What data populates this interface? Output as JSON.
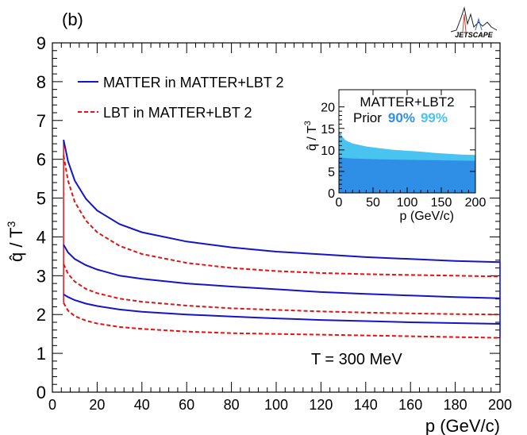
{
  "panel_label": "(b)",
  "logo_text": "JETSCAPE",
  "annotation": "T = 300 MeV",
  "colors": {
    "matter": "#1414c8",
    "lbt": "#e01414",
    "band90": "#2f8fe6",
    "band99": "#49c3ef"
  },
  "chart_data": [
    {
      "type": "line",
      "xlabel": "p (GeV/c)",
      "ylabel_main": "q̂ / T",
      "ylabel_sup": "3",
      "xlim": [
        0,
        200
      ],
      "ylim": [
        0,
        9
      ],
      "xticks": [
        0,
        20,
        40,
        60,
        80,
        100,
        120,
        140,
        160,
        180,
        200
      ],
      "yticks": [
        0,
        1,
        2,
        3,
        4,
        5,
        6,
        7,
        8,
        9
      ],
      "legend": [
        {
          "label": "MATTER in MATTER+LBT 2",
          "style": "solid",
          "color": "#1414c8"
        },
        {
          "label": "LBT in MATTER+LBT 2",
          "style": "dashed",
          "color": "#e01414"
        }
      ],
      "series": [
        {
          "name": "MATTER upper",
          "style": "solid",
          "color": "#1414c8",
          "x": [
            5,
            7,
            10,
            15,
            20,
            30,
            40,
            60,
            80,
            100,
            120,
            140,
            160,
            180,
            200
          ],
          "y": [
            6.5,
            5.95,
            5.45,
            4.98,
            4.68,
            4.33,
            4.12,
            3.88,
            3.73,
            3.62,
            3.55,
            3.48,
            3.43,
            3.38,
            3.35
          ]
        },
        {
          "name": "MATTER median",
          "style": "solid",
          "color": "#1414c8",
          "x": [
            5,
            7,
            10,
            15,
            20,
            30,
            40,
            60,
            80,
            100,
            120,
            140,
            160,
            180,
            200
          ],
          "y": [
            3.8,
            3.6,
            3.43,
            3.27,
            3.16,
            3.0,
            2.92,
            2.8,
            2.72,
            2.65,
            2.58,
            2.53,
            2.49,
            2.45,
            2.42
          ]
        },
        {
          "name": "MATTER lower",
          "style": "solid",
          "color": "#1414c8",
          "x": [
            5,
            7,
            10,
            15,
            20,
            30,
            40,
            60,
            80,
            100,
            120,
            140,
            160,
            180,
            200
          ],
          "y": [
            2.52,
            2.45,
            2.37,
            2.28,
            2.22,
            2.13,
            2.07,
            2.0,
            1.95,
            1.9,
            1.86,
            1.83,
            1.8,
            1.78,
            1.76
          ]
        },
        {
          "name": "LBT upper",
          "style": "dashed",
          "color": "#e01414",
          "x": [
            5,
            7,
            10,
            15,
            20,
            30,
            40,
            60,
            80,
            100,
            120,
            140,
            160,
            180,
            200
          ],
          "y": [
            6.1,
            5.45,
            4.9,
            4.42,
            4.12,
            3.77,
            3.56,
            3.33,
            3.2,
            3.12,
            3.07,
            3.04,
            3.02,
            3.0,
            2.98
          ]
        },
        {
          "name": "LBT median",
          "style": "dashed",
          "color": "#e01414",
          "x": [
            5,
            7,
            10,
            15,
            20,
            30,
            40,
            60,
            80,
            100,
            120,
            140,
            160,
            180,
            200
          ],
          "y": [
            3.3,
            3.05,
            2.85,
            2.66,
            2.55,
            2.41,
            2.33,
            2.23,
            2.16,
            2.12,
            2.08,
            2.05,
            2.03,
            2.01,
            2.0
          ]
        },
        {
          "name": "LBT lower",
          "style": "dashed",
          "color": "#e01414",
          "x": [
            5,
            7,
            10,
            15,
            20,
            30,
            40,
            60,
            80,
            100,
            120,
            140,
            160,
            180,
            200
          ],
          "y": [
            2.3,
            2.1,
            1.96,
            1.84,
            1.77,
            1.68,
            1.63,
            1.56,
            1.52,
            1.5,
            1.48,
            1.46,
            1.44,
            1.42,
            1.4
          ]
        }
      ]
    },
    {
      "type": "area",
      "title_line1": "MATTER+LBT2",
      "prior_label": "Prior",
      "band90_label": "90%",
      "band99_label": "99%",
      "xlabel": "p (GeV/c)",
      "ylabel_main": "q̂ / T",
      "ylabel_sup": "3",
      "xlim": [
        0,
        200
      ],
      "ylim": [
        0,
        24
      ],
      "xticks": [
        0,
        50,
        100,
        150,
        200
      ],
      "yticks": [
        0,
        5,
        10,
        15,
        20
      ],
      "x": [
        0,
        5,
        10,
        20,
        40,
        60,
        80,
        100,
        120,
        140,
        160,
        180,
        200
      ],
      "band90": [
        8.3,
        8.2,
        8.1,
        8.0,
        7.9,
        7.8,
        7.75,
        7.7,
        7.65,
        7.6,
        7.55,
        7.5,
        7.45
      ],
      "band99": [
        14.5,
        13.1,
        12.2,
        11.5,
        10.8,
        10.4,
        10.0,
        9.8,
        9.6,
        9.3,
        9.1,
        8.9,
        8.8
      ]
    }
  ]
}
